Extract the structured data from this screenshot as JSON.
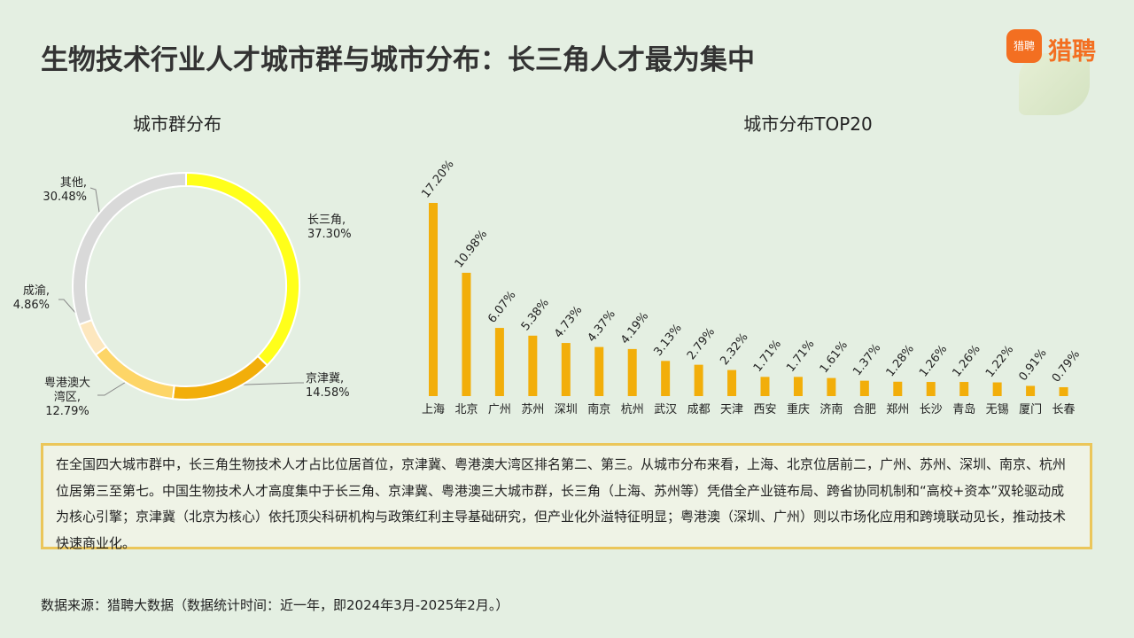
{
  "title": "生物技术行业人才城市群与城市分布：长三角人才最为集中",
  "logo": {
    "icon": "猎聘",
    "text": "猎聘"
  },
  "chart_data": [
    {
      "type": "pie",
      "donut": true,
      "title": "城市群分布",
      "categories": [
        "长三角,",
        "京津冀,",
        "粤港澳大湾区,",
        "成渝,",
        "其他,"
      ],
      "values": [
        37.3,
        14.58,
        12.79,
        4.86,
        30.48
      ],
      "value_labels": [
        "37.30%",
        "14.58%",
        "12.79%",
        "4.86%",
        "30.48%"
      ],
      "colors": [
        "#FFFF1A",
        "#F2AE0A",
        "#FDD567",
        "#FDE7BE",
        "#D9D9D9"
      ]
    },
    {
      "type": "bar",
      "title": "城市分布TOP20",
      "categories": [
        "上海",
        "北京",
        "广州",
        "苏州",
        "深圳",
        "南京",
        "杭州",
        "武汉",
        "成都",
        "天津",
        "西安",
        "重庆",
        "济南",
        "合肥",
        "郑州",
        "长沙",
        "青岛",
        "无锡",
        "厦门",
        "长春"
      ],
      "values": [
        17.2,
        10.98,
        6.07,
        5.38,
        4.73,
        4.37,
        4.19,
        3.13,
        2.79,
        2.32,
        1.71,
        1.71,
        1.61,
        1.37,
        1.28,
        1.26,
        1.26,
        1.22,
        0.91,
        0.79
      ],
      "value_labels": [
        "17.20%",
        "10.98%",
        "6.07%",
        "5.38%",
        "4.73%",
        "4.37%",
        "4.19%",
        "3.13%",
        "2.79%",
        "2.32%",
        "1.71%",
        "1.71%",
        "1.61%",
        "1.37%",
        "1.28%",
        "1.26%",
        "1.26%",
        "1.22%",
        "0.91%",
        "0.79%"
      ],
      "color": "#F2AE0A"
    }
  ],
  "summary": "在全国四大城市群中，长三角生物技术人才占比位居首位，京津冀、粤港澳大湾区排名第二、第三。从城市分布来看，上海、北京位居前二，广州、苏州、深圳、南京、杭州位居第三至第七。中国生物技术人才高度集中于长三角、京津冀、粤港澳三大城市群，长三角（上海、苏州等）凭借全产业链布局、跨省协同机制和“高校+资本”双轮驱动成为核心引擎；京津冀（北京为核心）依托顶尖科研机构与政策红利主导基础研究，但产业化外溢特征明显；粤港澳（深圳、广州）则以市场化应用和跨境联动见长，推动技术快速商业化。",
  "source": "数据来源：猎聘大数据（数据统计时间：近一年，即2024年3月-2025年2月。）"
}
